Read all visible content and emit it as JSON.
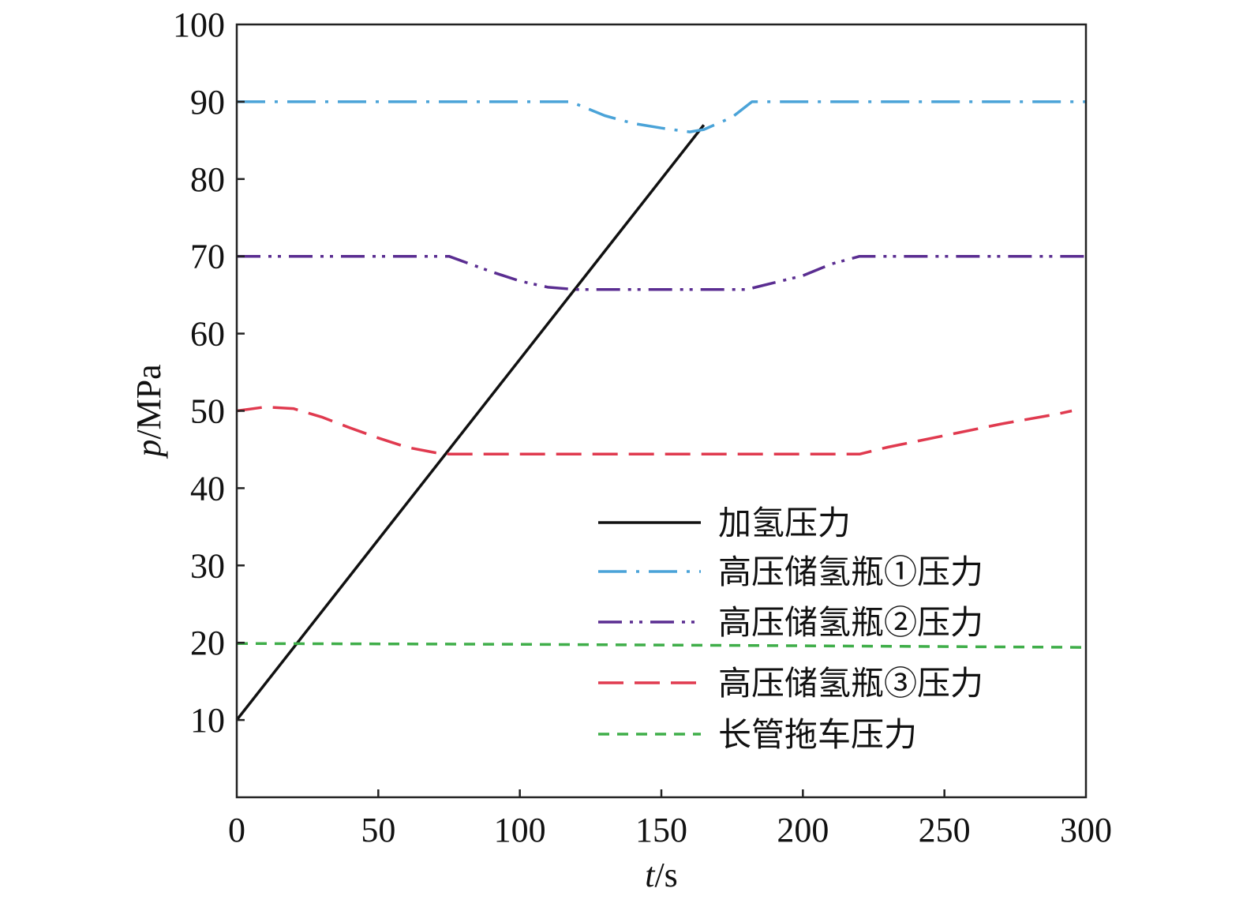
{
  "chart_data": {
    "type": "line",
    "xlabel": {
      "italic": "t",
      "unit": "/s"
    },
    "ylabel": {
      "italic": "p",
      "unit": "/MPa"
    },
    "xlim": [
      0,
      300
    ],
    "ylim": [
      0,
      100
    ],
    "xticks": [
      0,
      50,
      100,
      150,
      200,
      250,
      300
    ],
    "yticks": [
      10,
      20,
      30,
      40,
      50,
      60,
      70,
      80,
      90,
      100
    ],
    "grid": false,
    "legend_position": "bottom-right",
    "series": [
      {
        "name": "加氢压力",
        "color": "#111111",
        "dash": "solid",
        "points": [
          [
            0,
            10
          ],
          [
            165,
            87
          ]
        ]
      },
      {
        "name": "高压储氢瓶①压力",
        "color": "#4aa3d8",
        "dash": "dashdot",
        "points": [
          [
            0,
            90
          ],
          [
            118,
            90
          ],
          [
            130,
            88.2
          ],
          [
            140,
            87.2
          ],
          [
            150,
            86.6
          ],
          [
            160,
            86.1
          ],
          [
            165,
            86.4
          ],
          [
            175,
            88
          ],
          [
            182,
            90
          ],
          [
            300,
            90
          ]
        ]
      },
      {
        "name": "高压储氢瓶②压力",
        "color": "#5a2d91",
        "dash": "dashdotdot",
        "points": [
          [
            0,
            70
          ],
          [
            75,
            70
          ],
          [
            90,
            68
          ],
          [
            100,
            66.8
          ],
          [
            110,
            66
          ],
          [
            120,
            65.7
          ],
          [
            180,
            65.7
          ],
          [
            200,
            67.5
          ],
          [
            210,
            69
          ],
          [
            220,
            70
          ],
          [
            300,
            70
          ]
        ]
      },
      {
        "name": "高压储氢瓶③压力",
        "color": "#e03a4f",
        "dash": "longdash",
        "points": [
          [
            0,
            50
          ],
          [
            10,
            50.5
          ],
          [
            20,
            50.3
          ],
          [
            30,
            49.2
          ],
          [
            40,
            47.8
          ],
          [
            50,
            46.5
          ],
          [
            60,
            45.3
          ],
          [
            70,
            44.6
          ],
          [
            75,
            44.4
          ],
          [
            80,
            44.4
          ],
          [
            220,
            44.4
          ],
          [
            230,
            45.3
          ],
          [
            250,
            46.8
          ],
          [
            270,
            48.3
          ],
          [
            290,
            49.6
          ],
          [
            295,
            50
          ]
        ]
      },
      {
        "name": "长管拖车压力",
        "color": "#3fae49",
        "dash": "shortdash",
        "points": [
          [
            0,
            19.9
          ],
          [
            100,
            19.8
          ],
          [
            200,
            19.6
          ],
          [
            300,
            19.4
          ]
        ]
      }
    ]
  }
}
